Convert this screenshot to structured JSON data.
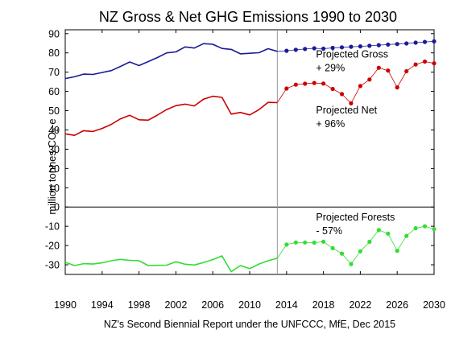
{
  "chart_data": {
    "type": "line",
    "title": "NZ Gross & Net GHG Emissions 1990 to 2030",
    "ylabel": "million tonnes CO",
    "ylabel_subscript": "2",
    "ylabel_suffix": "-e",
    "source": "NZ's Second Biennial Report under the UNFCCC, MfE, Dec 2015",
    "xlim": [
      1990,
      2030
    ],
    "ylim": [
      -35,
      92
    ],
    "x_ticks": [
      1990,
      1994,
      1998,
      2002,
      2006,
      2010,
      2014,
      2018,
      2022,
      2026,
      2030
    ],
    "x_tick_labels": [
      "1990",
      "1994",
      "1998",
      "2002",
      "2006",
      "2010",
      "2014",
      "2018",
      "2022",
      "2026",
      "2030"
    ],
    "y_ticks": [
      -30,
      -20,
      -10,
      0,
      10,
      20,
      30,
      40,
      50,
      60,
      70,
      80,
      90
    ],
    "y_tick_labels": [
      "-30",
      "-20",
      "-10",
      "0",
      "10",
      "20",
      "30",
      "40",
      "50",
      "60",
      "70",
      "80",
      "90"
    ],
    "projection_start": 2013,
    "annotations": [
      {
        "id": "gross",
        "lines": [
          "Projected Gross",
          "+ 29%"
        ],
        "x": 2017.2,
        "y": 77.5
      },
      {
        "id": "net",
        "lines": [
          "Projected Net",
          "+ 96%"
        ],
        "x": 2017.2,
        "y": 48.5
      },
      {
        "id": "forests",
        "lines": [
          "Projected Forests",
          "- 57%"
        ],
        "x": 2017.2,
        "y": -7
      }
    ],
    "series": [
      {
        "key": "gross-historical",
        "color": "#1a1a99",
        "style": "line",
        "x": [
          1990,
          1991,
          1992,
          1993,
          1994,
          1995,
          1996,
          1997,
          1998,
          1999,
          2000,
          2001,
          2002,
          2003,
          2004,
          2005,
          2006,
          2007,
          2008,
          2009,
          2010,
          2011,
          2012,
          2013
        ],
        "y": [
          66.7,
          67.6,
          69.0,
          68.8,
          69.8,
          70.8,
          73.0,
          75.3,
          73.4,
          75.5,
          77.6,
          80.0,
          80.5,
          83.1,
          82.5,
          84.8,
          84.5,
          82.3,
          81.8,
          79.5,
          79.8,
          80.1,
          82.2,
          80.8
        ]
      },
      {
        "key": "gross-projected",
        "color": "#1a1a99",
        "style": "dotted",
        "x": [
          2013,
          2014,
          2015,
          2016,
          2017,
          2018,
          2019,
          2020,
          2021,
          2022,
          2023,
          2024,
          2025,
          2026,
          2027,
          2028,
          2029,
          2030
        ],
        "y": [
          80.8,
          81.1,
          81.6,
          82.0,
          82.4,
          82.2,
          82.6,
          82.9,
          83.2,
          83.4,
          83.7,
          84.0,
          84.3,
          84.6,
          84.9,
          85.3,
          85.7,
          86.0
        ]
      },
      {
        "key": "net-historical",
        "color": "#cc0000",
        "style": "line",
        "x": [
          1990,
          1991,
          1992,
          1993,
          1994,
          1995,
          1996,
          1997,
          1998,
          1999,
          2000,
          2001,
          2002,
          2003,
          2004,
          2005,
          2006,
          2007,
          2008,
          2009,
          2010,
          2011,
          2012,
          2013
        ],
        "y": [
          38.0,
          37.2,
          39.6,
          39.2,
          40.8,
          42.9,
          45.8,
          47.6,
          45.3,
          45.1,
          47.7,
          50.6,
          52.6,
          53.4,
          52.5,
          56.0,
          57.5,
          56.9,
          48.2,
          49.1,
          47.8,
          50.5,
          54.3,
          54.2
        ]
      },
      {
        "key": "net-projected",
        "color": "#cc0000",
        "style": "dotted",
        "x": [
          2013,
          2014,
          2015,
          2016,
          2017,
          2018,
          2019,
          2020,
          2021,
          2022,
          2023,
          2024,
          2025,
          2026,
          2027,
          2028,
          2029,
          2030
        ],
        "y": [
          54.2,
          61.5,
          63.5,
          64.0,
          64.4,
          64.1,
          61.3,
          58.6,
          53.8,
          62.8,
          66.2,
          72.3,
          70.8,
          62.1,
          70.5,
          74.0,
          75.5,
          74.6
        ]
      },
      {
        "key": "forests-historical",
        "color": "#33dd33",
        "style": "line",
        "x": [
          1990,
          1991,
          1992,
          1993,
          1994,
          1995,
          1996,
          1997,
          1998,
          1999,
          2000,
          2001,
          2002,
          2003,
          2004,
          2005,
          2006,
          2007,
          2008,
          2009,
          2010,
          2011,
          2012,
          2013
        ],
        "y": [
          -28.7,
          -30.4,
          -29.4,
          -29.6,
          -29.0,
          -27.9,
          -27.2,
          -27.7,
          -27.9,
          -30.4,
          -30.3,
          -30.2,
          -28.4,
          -29.7,
          -30.1,
          -28.8,
          -27.3,
          -25.4,
          -33.6,
          -30.4,
          -32.0,
          -29.6,
          -27.9,
          -26.6
        ]
      },
      {
        "key": "forests-projected",
        "color": "#33dd33",
        "style": "dotted",
        "x": [
          2013,
          2014,
          2015,
          2016,
          2017,
          2018,
          2019,
          2020,
          2021,
          2022,
          2023,
          2024,
          2025,
          2026,
          2027,
          2028,
          2029,
          2030
        ],
        "y": [
          -26.6,
          -19.5,
          -18.4,
          -18.4,
          -18.5,
          -18.0,
          -21.4,
          -24.2,
          -29.6,
          -23.0,
          -18.1,
          -12.0,
          -13.8,
          -22.7,
          -15.0,
          -11.0,
          -10.0,
          -11.5
        ]
      }
    ]
  }
}
